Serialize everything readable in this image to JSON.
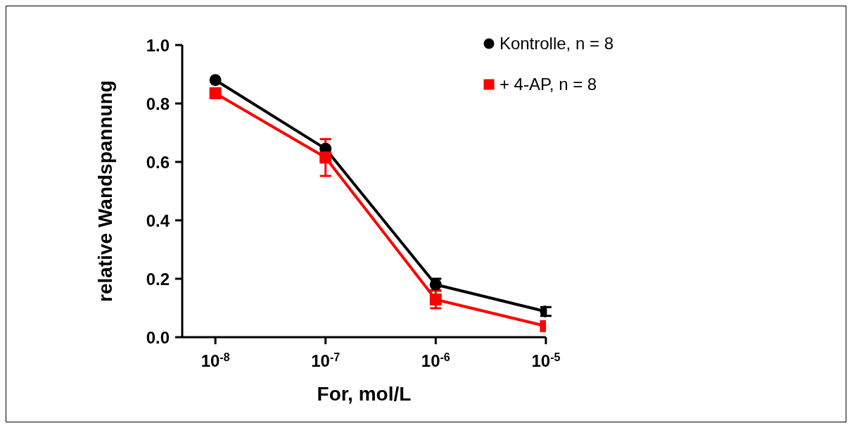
{
  "chart_data": {
    "type": "line",
    "xlabel": "For, mol/L",
    "ylabel": "relative Wandspannung",
    "x": [
      1e-08,
      1e-07,
      1e-06,
      1e-05
    ],
    "series": [
      {
        "name": "Kontrolle, n = 8",
        "color": "#000000",
        "marker": "circle",
        "values": [
          0.88,
          0.645,
          0.18,
          0.088
        ],
        "errors": [
          null,
          null,
          0.02,
          0.015
        ]
      },
      {
        "name": "+ 4-AP, n = 8",
        "color": "#ff0000",
        "marker": "square",
        "values": [
          0.835,
          0.615,
          0.129,
          0.038
        ],
        "errors": [
          null,
          0.063,
          0.03,
          null
        ]
      }
    ],
    "log": "x",
    "xlim": [
      5e-09,
      1e-05
    ],
    "xticks": [
      {
        "value": 1e-08,
        "label": "10$^{-8}$"
      },
      {
        "value": 1e-07,
        "label": "10$^{-7}$"
      },
      {
        "value": 1e-06,
        "label": "10$^{-6}$"
      },
      {
        "value": 1e-05,
        "label": "10$^{-5}$"
      }
    ],
    "ylim": [
      0,
      1
    ],
    "yticks": [
      {
        "value": 0,
        "label": "0.0"
      },
      {
        "value": 0.2,
        "label": "0.2"
      },
      {
        "value": 0.4,
        "label": "0.4"
      },
      {
        "value": 0.6,
        "label": "0.6"
      },
      {
        "value": 0.8,
        "label": "0.8"
      },
      {
        "value": 1,
        "label": "1.0"
      }
    ],
    "grid": false,
    "legend": "top right",
    "line_style": "solid"
  }
}
